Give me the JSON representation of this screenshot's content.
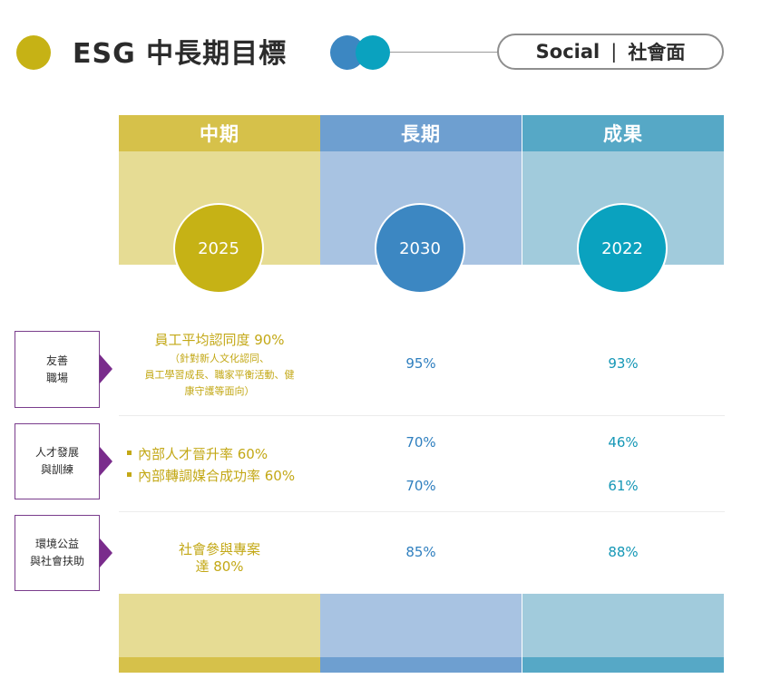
{
  "header": {
    "title": "ESG 中長期目標",
    "pill_en": "Social",
    "pill_sep": "|",
    "pill_zh": "社會面"
  },
  "columns": [
    {
      "label": "中期",
      "year": "2025"
    },
    {
      "label": "長期",
      "year": "2030"
    },
    {
      "label": "成果",
      "year": "2022"
    }
  ],
  "rows": [
    {
      "label_line1": "友善",
      "label_line2": "職場",
      "mid_main": "員工平均認同度 90%",
      "mid_note1": "（針對新人文化認同、",
      "mid_note2": "員工學習成長、職家平衡活動、健",
      "mid_note3": "康守護等面向）",
      "long": "95%",
      "result": "93%"
    },
    {
      "label_line1": "人才發展",
      "label_line2": "與訓練",
      "mid_item1": "內部人才晉升率 60%",
      "mid_item2": "內部轉調媒合成功率 60%",
      "long1": "70%",
      "long2": "70%",
      "result1": "46%",
      "result2": "61%"
    },
    {
      "label_line1": "環境公益",
      "label_line2": "與社會扶助",
      "mid_line1": "社會參與專案",
      "mid_line2": "達 80%",
      "long": "85%",
      "result": "88%"
    }
  ],
  "colors": {
    "gold": "#c6b215",
    "blue": "#3c87c2",
    "teal": "#0aa2bf",
    "label_border": "#7a3d8c"
  }
}
